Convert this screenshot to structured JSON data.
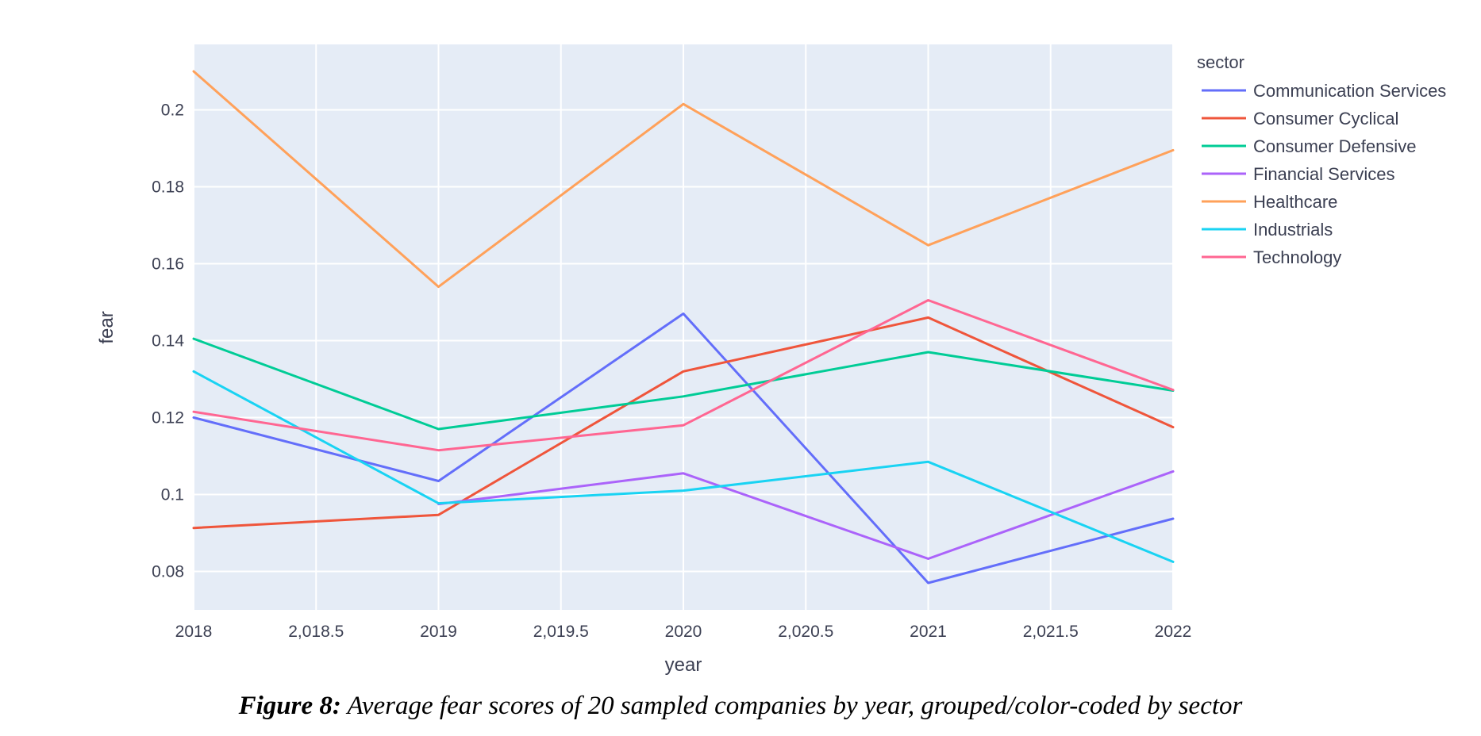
{
  "caption": {
    "label": "Figure 8:",
    "text": "Average fear scores of 20 sampled companies by year, grouped/color-coded by sector"
  },
  "chart_data": {
    "type": "line",
    "xlabel": "year",
    "ylabel": "fear",
    "legend_title": "sector",
    "legend_position": "right",
    "grid": true,
    "xlim": [
      2018,
      2022
    ],
    "ylim": [
      0.07,
      0.217
    ],
    "x_ticks": [
      2018,
      2018.5,
      2019,
      2019.5,
      2020,
      2020.5,
      2021,
      2021.5,
      2022
    ],
    "x_tick_labels": [
      "2018",
      "2,018.5",
      "2019",
      "2,019.5",
      "2020",
      "2,020.5",
      "2021",
      "2,021.5",
      "2022"
    ],
    "y_ticks": [
      0.08,
      0.1,
      0.12,
      0.14,
      0.16,
      0.18,
      0.2
    ],
    "y_tick_labels": [
      "0.08",
      "0.1",
      "0.12",
      "0.14",
      "0.16",
      "0.18",
      "0.2"
    ],
    "x": [
      2018,
      2019,
      2020,
      2021,
      2022
    ],
    "plot_bg_color": "#e5ecf6",
    "series": [
      {
        "name": "Communication Services",
        "color": "#636efa",
        "values": [
          0.12,
          0.1035,
          0.147,
          0.077,
          0.0937
        ]
      },
      {
        "name": "Consumer Cyclical",
        "color": "#ef553b",
        "values": [
          0.0913,
          0.0947,
          0.132,
          0.146,
          0.1175
        ]
      },
      {
        "name": "Consumer Defensive",
        "color": "#00cc96",
        "values": [
          0.1405,
          0.117,
          0.1255,
          0.137,
          0.127
        ]
      },
      {
        "name": "Financial Services",
        "color": "#ab63fa",
        "values": [
          null,
          0.0975,
          0.1055,
          0.0833,
          0.106
        ]
      },
      {
        "name": "Healthcare",
        "color": "#ffa15a",
        "values": [
          0.21,
          0.154,
          0.2015,
          0.1648,
          0.1895
        ]
      },
      {
        "name": "Industrials",
        "color": "#19d3f3",
        "values": [
          0.132,
          0.0977,
          0.101,
          0.1085,
          0.0825
        ]
      },
      {
        "name": "Technology",
        "color": "#ff6692",
        "values": [
          0.1215,
          0.1115,
          0.118,
          0.1505,
          0.1272
        ]
      }
    ]
  }
}
